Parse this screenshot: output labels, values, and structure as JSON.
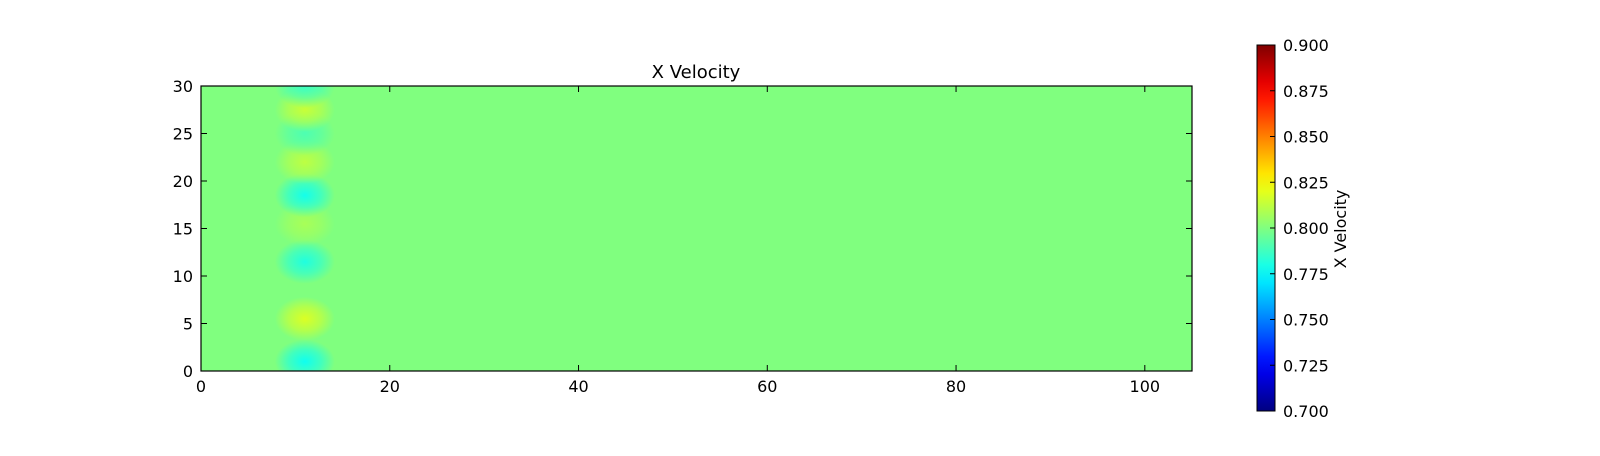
{
  "chart_data": {
    "type": "heatmap",
    "title": "X Velocity",
    "xlabel": "",
    "ylabel": "",
    "xlim": [
      0,
      105
    ],
    "ylim": [
      0,
      30
    ],
    "x_ticks": [
      0,
      20,
      40,
      60,
      80,
      100
    ],
    "y_ticks": [
      0,
      5,
      10,
      15,
      20,
      25,
      30
    ],
    "background_value": 0.8,
    "colormap": "jet",
    "colorbar": {
      "label": "X Velocity",
      "range": [
        0.7,
        0.9
      ],
      "ticks": [
        "0.700",
        "0.725",
        "0.750",
        "0.775",
        "0.800",
        "0.825",
        "0.850",
        "0.875",
        "0.900"
      ]
    },
    "features": [
      {
        "x": 11,
        "y": 1,
        "value": 0.778
      },
      {
        "x": 11,
        "y": 5.5,
        "value": 0.818
      },
      {
        "x": 11,
        "y": 11.5,
        "value": 0.781
      },
      {
        "x": 11,
        "y": 15.5,
        "value": 0.808
      },
      {
        "x": 11,
        "y": 18.5,
        "value": 0.779
      },
      {
        "x": 11,
        "y": 22,
        "value": 0.812
      },
      {
        "x": 11,
        "y": 25,
        "value": 0.79
      },
      {
        "x": 11,
        "y": 27.5,
        "value": 0.814
      },
      {
        "x": 11,
        "y": 30,
        "value": 0.787
      }
    ]
  }
}
